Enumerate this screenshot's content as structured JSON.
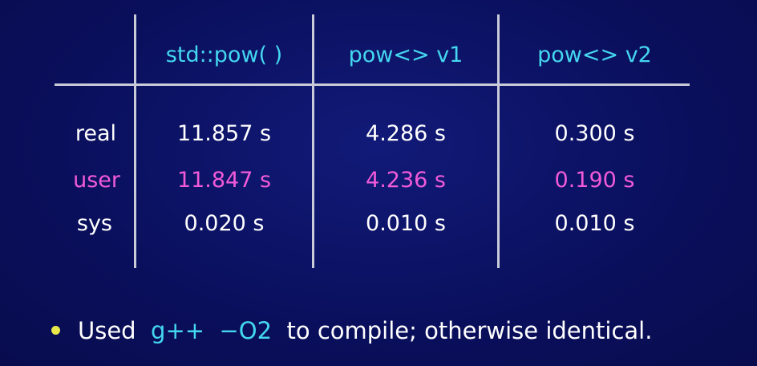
{
  "colors": {
    "background": "#0a0f5c",
    "header_text": "#44d7f0",
    "user_row": "#f25ad9",
    "default_text": "#ffffff",
    "bullet": "#e8e84a",
    "rules": "#c9ccd8"
  },
  "table": {
    "headers": [
      "std::pow( )",
      "pow<> v1",
      "pow<> v2"
    ],
    "rows": [
      {
        "label": "real",
        "values": [
          "11.857 s",
          "4.286 s",
          "0.300 s"
        ],
        "color": "#ffffff"
      },
      {
        "label": "user",
        "values": [
          "11.847 s",
          "4.236 s",
          "0.190 s"
        ],
        "color": "#f25ad9"
      },
      {
        "label": "sys",
        "values": [
          "0.020 s",
          "0.010 s",
          "0.010 s"
        ],
        "color": "#ffffff"
      }
    ]
  },
  "note": {
    "prefix": "Used",
    "code": "g++  −O2",
    "suffix": "to compile; otherwise identical."
  }
}
